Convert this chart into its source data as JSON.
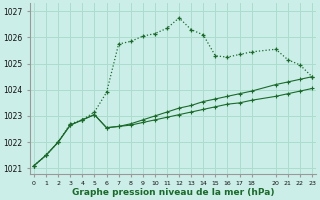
{
  "title": "Graphe pression niveau de la mer (hPa)",
  "bg_color": "#cceee8",
  "grid_color": "#aaddcc",
  "line_color": "#1a6b2a",
  "ylim": [
    1020.8,
    1027.3
  ],
  "yticks": [
    1021,
    1022,
    1023,
    1024,
    1025,
    1026,
    1027
  ],
  "x_data": [
    0,
    1,
    2,
    3,
    4,
    5,
    6,
    7,
    8,
    9,
    10,
    11,
    12,
    13,
    14,
    15,
    16,
    17,
    18,
    20,
    21,
    22,
    23
  ],
  "s1": [
    1021.1,
    1021.5,
    1022.0,
    1022.7,
    1022.85,
    1023.15,
    1023.9,
    1025.75,
    1025.85,
    1026.05,
    1026.15,
    1026.35,
    1026.75,
    1026.3,
    1026.1,
    1025.3,
    1025.25,
    1025.35,
    1025.45,
    1025.55,
    1025.15,
    1024.95,
    1024.5
  ],
  "s2": [
    1021.1,
    1021.5,
    1022.0,
    1022.65,
    1022.85,
    1023.05,
    1022.55,
    1022.6,
    1022.7,
    1022.85,
    1023.0,
    1023.15,
    1023.3,
    1023.4,
    1023.55,
    1023.65,
    1023.75,
    1023.85,
    1023.95,
    1024.2,
    1024.3,
    1024.4,
    1024.5
  ],
  "s3": [
    1021.1,
    1021.5,
    1022.0,
    1022.65,
    1022.85,
    1023.05,
    1022.55,
    1022.6,
    1022.65,
    1022.75,
    1022.85,
    1022.95,
    1023.05,
    1023.15,
    1023.25,
    1023.35,
    1023.45,
    1023.5,
    1023.6,
    1023.75,
    1023.85,
    1023.95,
    1024.05
  ]
}
